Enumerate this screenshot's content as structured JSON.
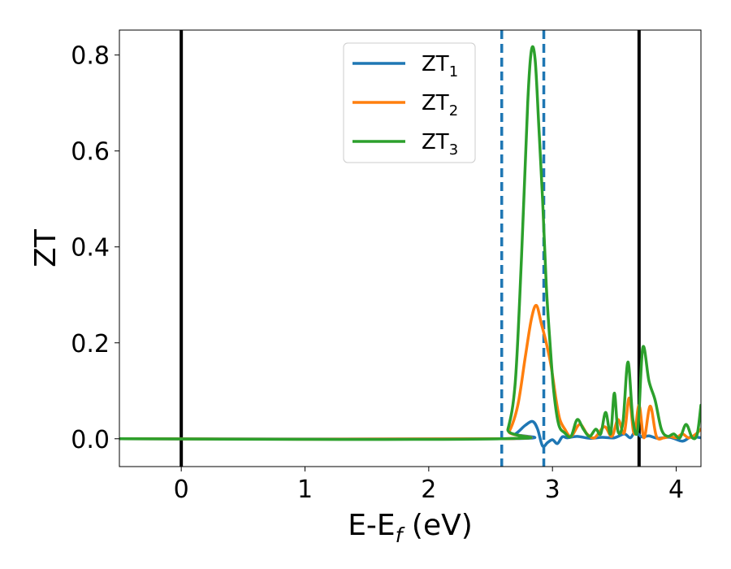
{
  "chart_data": {
    "type": "line",
    "xlabel": {
      "main": "E-E",
      "sub": "f",
      "suffix": " (eV)"
    },
    "ylabel": "ZT",
    "xlim": [
      -0.5,
      4.2
    ],
    "ylim": [
      -0.058,
      0.852
    ],
    "xticks": [
      0,
      1,
      2,
      3,
      4
    ],
    "xtick_labels": [
      "0",
      "1",
      "2",
      "3",
      "4"
    ],
    "yticks": [
      0.0,
      0.2,
      0.4,
      0.6,
      0.8
    ],
    "ytick_labels": [
      "0.0",
      "0.2",
      "0.4",
      "0.6",
      "0.8"
    ],
    "grid": false,
    "legend_position": "upper center",
    "vlines": [
      {
        "x": 0.0,
        "style": "solid",
        "color": "#000000"
      },
      {
        "x": 3.7,
        "style": "solid",
        "color": "#000000"
      },
      {
        "x": 2.59,
        "style": "dashed",
        "color": "#1f77b4"
      },
      {
        "x": 2.93,
        "style": "dashed",
        "color": "#1f77b4"
      }
    ],
    "series": [
      {
        "name": "ZT",
        "name_sub": "1",
        "color": "#1f77b4",
        "x": [
          -0.5,
          2.6,
          2.7,
          2.78,
          2.84,
          2.88,
          2.92,
          2.96,
          3.0,
          3.04,
          3.08,
          3.12,
          3.2,
          3.3,
          3.4,
          3.5,
          3.58,
          3.63,
          3.67,
          3.72,
          3.78,
          3.85,
          3.95,
          4.05,
          4.12,
          4.2
        ],
        "y": [
          0.0,
          0.0,
          0.01,
          0.028,
          0.036,
          0.02,
          -0.015,
          -0.008,
          -0.002,
          -0.01,
          0.004,
          0.002,
          0.005,
          0.001,
          0.003,
          0.002,
          0.01,
          0.002,
          0.015,
          0.004,
          0.006,
          0.001,
          0.003,
          -0.005,
          0.004,
          0.002
        ]
      },
      {
        "name": "ZT",
        "name_sub": "2",
        "color": "#ff7f0e",
        "x": [
          -0.5,
          2.58,
          2.65,
          2.72,
          2.78,
          2.83,
          2.87,
          2.91,
          2.95,
          2.99,
          3.03,
          3.06,
          3.1,
          3.15,
          3.22,
          3.28,
          3.34,
          3.42,
          3.48,
          3.53,
          3.58,
          3.62,
          3.66,
          3.7,
          3.74,
          3.79,
          3.84,
          3.9,
          3.95,
          4.0,
          4.05,
          4.1,
          4.15,
          4.2
        ],
        "y": [
          0.0,
          0.0,
          0.015,
          0.07,
          0.17,
          0.25,
          0.278,
          0.24,
          0.2,
          0.15,
          0.08,
          0.04,
          0.02,
          0.005,
          0.03,
          0.01,
          0.002,
          0.025,
          0.005,
          0.04,
          0.012,
          0.085,
          0.01,
          0.07,
          0.002,
          0.068,
          0.005,
          0.002,
          0.005,
          0.002,
          0.01,
          0.002,
          0.008,
          0.02
        ]
      },
      {
        "name": "ZT",
        "name_sub": "3",
        "color": "#2ca02c",
        "x": [
          -0.5,
          2.58,
          2.64,
          2.7,
          2.75,
          2.8,
          2.83,
          2.86,
          2.89,
          2.92,
          2.95,
          2.98,
          3.01,
          3.05,
          3.1,
          3.15,
          3.2,
          3.25,
          3.3,
          3.35,
          3.39,
          3.43,
          3.47,
          3.5,
          3.53,
          3.57,
          3.61,
          3.65,
          3.69,
          3.73,
          3.78,
          3.83,
          3.88,
          3.93,
          3.98,
          4.03,
          4.08,
          4.13,
          4.17,
          4.2
        ],
        "y": [
          0.0,
          0.0,
          0.02,
          0.12,
          0.38,
          0.7,
          0.81,
          0.79,
          0.65,
          0.5,
          0.32,
          0.2,
          0.1,
          0.03,
          0.012,
          0.005,
          0.04,
          0.02,
          0.005,
          0.02,
          0.01,
          0.055,
          0.01,
          0.095,
          0.015,
          0.035,
          0.16,
          0.04,
          0.02,
          0.19,
          0.12,
          0.08,
          0.02,
          0.005,
          0.01,
          0.002,
          0.03,
          0.002,
          0.01,
          0.07
        ]
      }
    ]
  }
}
